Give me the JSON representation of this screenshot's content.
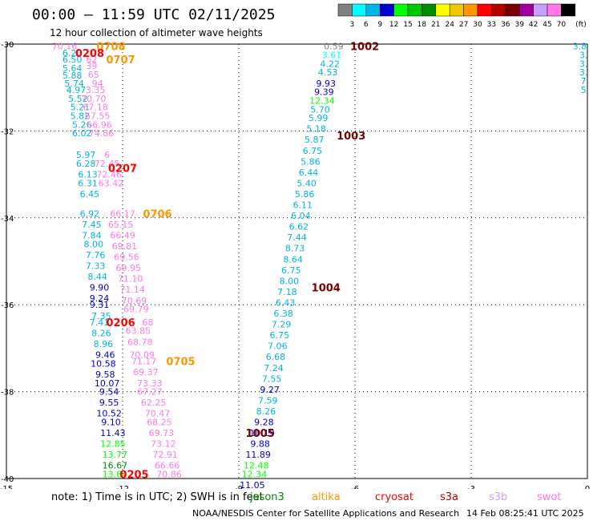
{
  "header": {
    "title": "00:00 – 11:59 UTC 02/11/2025",
    "subtitle": "12 hour collection of altimeter wave heights"
  },
  "legend": {
    "unit": "(ft)",
    "bins": [
      {
        "label": "3",
        "color": "#808080"
      },
      {
        "label": "6",
        "color": "#00ffff"
      },
      {
        "label": "9",
        "color": "#00b4e6"
      },
      {
        "label": "12",
        "color": "#0000d0"
      },
      {
        "label": "15",
        "color": "#00ff00"
      },
      {
        "label": "18",
        "color": "#00c800"
      },
      {
        "label": "21",
        "color": "#008c00"
      },
      {
        "label": "24",
        "color": "#ffff00"
      },
      {
        "label": "27",
        "color": "#f0c800"
      },
      {
        "label": "30",
        "color": "#ff9600"
      },
      {
        "label": "33",
        "color": "#ff0000"
      },
      {
        "label": "36",
        "color": "#b40000"
      },
      {
        "label": "39",
        "color": "#780000"
      },
      {
        "label": "42",
        "color": "#a000a0"
      },
      {
        "label": "45",
        "color": "#c8a0ff"
      },
      {
        "label": "70",
        "color": "#ff78e6"
      },
      {
        "label": "",
        "color": "#000000"
      }
    ]
  },
  "map": {
    "lon_ticks": [
      "-15",
      "-12",
      "-9",
      "-6",
      "-3",
      "0"
    ],
    "lat_ticks": [
      "-30",
      "-32",
      "-34",
      "-36",
      "-38",
      "-40"
    ],
    "track_labels": [
      {
        "text": "0708",
        "lon": -12.3,
        "lat": -30.05,
        "color": "#ff9600"
      },
      {
        "text": "0208",
        "lon": -12.85,
        "lat": -30.2,
        "color": "#ff0000"
      },
      {
        "text": "0707",
        "lon": -12.05,
        "lat": -30.35,
        "color": "#ff9600"
      },
      {
        "text": "0207",
        "lon": -12.0,
        "lat": -32.85,
        "color": "#ff0000"
      },
      {
        "text": "0706",
        "lon": -11.1,
        "lat": -33.9,
        "color": "#ff9600"
      },
      {
        "text": "0206",
        "lon": -12.05,
        "lat": -36.4,
        "color": "#ff0000"
      },
      {
        "text": "0705",
        "lon": -10.5,
        "lat": -37.3,
        "color": "#ff9600"
      },
      {
        "text": "0205",
        "lon": -11.7,
        "lat": -39.9,
        "color": "#ff0000"
      },
      {
        "text": "1002",
        "lon": -5.75,
        "lat": -30.05,
        "color": "#780000"
      },
      {
        "text": "1003",
        "lon": -6.1,
        "lat": -32.1,
        "color": "#780000"
      },
      {
        "text": "1004",
        "lon": -6.75,
        "lat": -35.6,
        "color": "#780000"
      },
      {
        "text": "1005",
        "lon": -8.45,
        "lat": -38.95,
        "color": "#780000"
      }
    ],
    "values": [
      {
        "t": "70.16",
        "lon": -13.5,
        "lat": -30.05,
        "c": "#ff78e6"
      },
      {
        "t": "6.20",
        "lon": -13.3,
        "lat": -30.2,
        "c": "#00b4e6"
      },
      {
        "t": "6.50",
        "lon": -13.3,
        "lat": -30.35,
        "c": "#00b4e6"
      },
      {
        "t": "62",
        "lon": -12.8,
        "lat": -30.35,
        "c": "#ff78e6"
      },
      {
        "t": "39",
        "lon": -12.8,
        "lat": -30.5,
        "c": "#ff78e6"
      },
      {
        "t": "5.64",
        "lon": -13.3,
        "lat": -30.55,
        "c": "#00b4e6"
      },
      {
        "t": "5.88",
        "lon": -13.3,
        "lat": -30.72,
        "c": "#00b4e6"
      },
      {
        "t": "65",
        "lon": -12.75,
        "lat": -30.7,
        "c": "#ff78e6"
      },
      {
        "t": "5.74",
        "lon": -13.25,
        "lat": -30.9,
        "c": "#00b4e6"
      },
      {
        "t": "94",
        "lon": -12.65,
        "lat": -30.9,
        "c": "#ff78e6"
      },
      {
        "t": "4.97",
        "lon": -13.2,
        "lat": -31.05,
        "c": "#00b4e6"
      },
      {
        "t": "3.35",
        "lon": -12.7,
        "lat": -31.05,
        "c": "#ff78e6"
      },
      {
        "t": "5.52",
        "lon": -13.15,
        "lat": -31.25,
        "c": "#00b4e6"
      },
      {
        "t": "70.70",
        "lon": -12.75,
        "lat": -31.25,
        "c": "#ff78e6"
      },
      {
        "t": "5.21",
        "lon": -13.1,
        "lat": -31.45,
        "c": "#00b4e6"
      },
      {
        "t": "67.18",
        "lon": -12.7,
        "lat": -31.45,
        "c": "#ff78e6"
      },
      {
        "t": "5.82",
        "lon": -13.1,
        "lat": -31.65,
        "c": "#00b4e6"
      },
      {
        "t": "67.55",
        "lon": -12.65,
        "lat": -31.65,
        "c": "#ff78e6"
      },
      {
        "t": "5.26",
        "lon": -13.05,
        "lat": -31.85,
        "c": "#00b4e6"
      },
      {
        "t": "66.96",
        "lon": -12.6,
        "lat": -31.85,
        "c": "#ff78e6"
      },
      {
        "t": "6.02",
        "lon": -13.05,
        "lat": -32.05,
        "c": "#00b4e6"
      },
      {
        "t": "74.86",
        "lon": -12.55,
        "lat": -32.05,
        "c": "#ff78e6"
      },
      {
        "t": "5.97",
        "lon": -12.95,
        "lat": -32.55,
        "c": "#00b4e6"
      },
      {
        "t": "6",
        "lon": -12.4,
        "lat": -32.55,
        "c": "#ff78e6"
      },
      {
        "t": "6.28",
        "lon": -12.95,
        "lat": -32.75,
        "c": "#00b4e6"
      },
      {
        "t": "72.45",
        "lon": -12.4,
        "lat": -32.75,
        "c": "#ff78e6"
      },
      {
        "t": "6.13",
        "lon": -12.9,
        "lat": -33.0,
        "c": "#00b4e6"
      },
      {
        "t": "72.46",
        "lon": -12.35,
        "lat": -33.0,
        "c": "#ff78e6"
      },
      {
        "t": "6.31",
        "lon": -12.9,
        "lat": -33.2,
        "c": "#00b4e6"
      },
      {
        "t": "63.42",
        "lon": -12.3,
        "lat": -33.2,
        "c": "#ff78e6"
      },
      {
        "t": "6.45",
        "lon": -12.85,
        "lat": -33.45,
        "c": "#00b4e6"
      },
      {
        "t": "6.92",
        "lon": -12.85,
        "lat": -33.9,
        "c": "#00b4e6"
      },
      {
        "t": "66.17",
        "lon": -12.0,
        "lat": -33.9,
        "c": "#ff78e6"
      },
      {
        "t": "7.45",
        "lon": -12.8,
        "lat": -34.15,
        "c": "#00b4e6"
      },
      {
        "t": "65.15",
        "lon": -12.05,
        "lat": -34.15,
        "c": "#ff78e6"
      },
      {
        "t": "7.84",
        "lon": -12.8,
        "lat": -34.4,
        "c": "#00b4e6"
      },
      {
        "t": "66.49",
        "lon": -12.0,
        "lat": -34.4,
        "c": "#ff78e6"
      },
      {
        "t": "8.00",
        "lon": -12.75,
        "lat": -34.6,
        "c": "#00b4e6"
      },
      {
        "t": "69.81",
        "lon": -11.95,
        "lat": -34.65,
        "c": "#ff78e6"
      },
      {
        "t": "7.76",
        "lon": -12.7,
        "lat": -34.85,
        "c": "#00b4e6"
      },
      {
        "t": "69.56",
        "lon": -11.9,
        "lat": -34.9,
        "c": "#ff78e6"
      },
      {
        "t": "7.33",
        "lon": -12.7,
        "lat": -35.1,
        "c": "#00b4e6"
      },
      {
        "t": "69.95",
        "lon": -11.85,
        "lat": -35.15,
        "c": "#ff78e6"
      },
      {
        "t": "8.44",
        "lon": -12.65,
        "lat": -35.35,
        "c": "#00b4e6"
      },
      {
        "t": "71.10",
        "lon": -11.8,
        "lat": -35.4,
        "c": "#ff78e6"
      },
      {
        "t": "9.90",
        "lon": -12.6,
        "lat": -35.6,
        "c": "#0000d0"
      },
      {
        "t": "71.14",
        "lon": -11.75,
        "lat": -35.65,
        "c": "#ff78e6"
      },
      {
        "t": "9.24",
        "lon": -12.6,
        "lat": -35.85,
        "c": "#0000d0"
      },
      {
        "t": "70.69",
        "lon": -11.7,
        "lat": -35.9,
        "c": "#ff78e6"
      },
      {
        "t": "9.31",
        "lon": -12.6,
        "lat": -36.0,
        "c": "#0000d0"
      },
      {
        "t": "69.79",
        "lon": -11.65,
        "lat": -36.1,
        "c": "#ff78e6"
      },
      {
        "t": "7.35",
        "lon": -12.55,
        "lat": -36.25,
        "c": "#00b4e6"
      },
      {
        "t": "7.41",
        "lon": -12.6,
        "lat": -36.4,
        "c": "#00b4e6"
      },
      {
        "t": "68",
        "lon": -11.35,
        "lat": -36.4,
        "c": "#ff78e6"
      },
      {
        "t": "8.26",
        "lon": -12.55,
        "lat": -36.65,
        "c": "#00b4e6"
      },
      {
        "t": "63.85",
        "lon": -11.6,
        "lat": -36.6,
        "c": "#ff78e6"
      },
      {
        "t": "8.96",
        "lon": -12.5,
        "lat": -36.9,
        "c": "#00b4e6"
      },
      {
        "t": "68.78",
        "lon": -11.55,
        "lat": -36.85,
        "c": "#ff78e6"
      },
      {
        "t": "9.46",
        "lon": -12.45,
        "lat": -37.15,
        "c": "#0000d0"
      },
      {
        "t": "70.09",
        "lon": -11.5,
        "lat": -37.15,
        "c": "#ff78e6"
      },
      {
        "t": "10.58",
        "lon": -12.5,
        "lat": -37.35,
        "c": "#0000d0"
      },
      {
        "t": "71.17",
        "lon": -11.45,
        "lat": -37.3,
        "c": "#ff78e6"
      },
      {
        "t": "9.58",
        "lon": -12.45,
        "lat": -37.6,
        "c": "#0000d0"
      },
      {
        "t": "69.37",
        "lon": -11.4,
        "lat": -37.55,
        "c": "#ff78e6"
      },
      {
        "t": "10.07",
        "lon": -12.4,
        "lat": -37.8,
        "c": "#0000d0"
      },
      {
        "t": "73.33",
        "lon": -11.3,
        "lat": -37.8,
        "c": "#ff78e6"
      },
      {
        "t": "9.54",
        "lon": -12.35,
        "lat": -38.0,
        "c": "#0000d0"
      },
      {
        "t": "67.27",
        "lon": -11.3,
        "lat": -38.0,
        "c": "#ff78e6"
      },
      {
        "t": "9.55",
        "lon": -12.35,
        "lat": -38.25,
        "c": "#0000d0"
      },
      {
        "t": "62.25",
        "lon": -11.2,
        "lat": -38.25,
        "c": "#ff78e6"
      },
      {
        "t": "10.52",
        "lon": -12.35,
        "lat": -38.5,
        "c": "#0000d0"
      },
      {
        "t": "70.47",
        "lon": -11.1,
        "lat": -38.5,
        "c": "#ff78e6"
      },
      {
        "t": "9.10",
        "lon": -12.3,
        "lat": -38.7,
        "c": "#0000d0"
      },
      {
        "t": "68.25",
        "lon": -11.05,
        "lat": -38.7,
        "c": "#ff78e6"
      },
      {
        "t": "11.43",
        "lon": -12.25,
        "lat": -38.95,
        "c": "#0000d0"
      },
      {
        "t": "69.73",
        "lon": -11.0,
        "lat": -38.95,
        "c": "#ff78e6"
      },
      {
        "t": "12.85",
        "lon": -12.25,
        "lat": -39.2,
        "c": "#00ff00"
      },
      {
        "t": "73.12",
        "lon": -10.95,
        "lat": -39.2,
        "c": "#ff78e6"
      },
      {
        "t": "13.77",
        "lon": -12.2,
        "lat": -39.45,
        "c": "#00ff00"
      },
      {
        "t": "72.91",
        "lon": -10.9,
        "lat": -39.45,
        "c": "#ff78e6"
      },
      {
        "t": "16.67",
        "lon": -12.2,
        "lat": -39.7,
        "c": "#008c00"
      },
      {
        "t": "66.66",
        "lon": -10.85,
        "lat": -39.7,
        "c": "#ff78e6"
      },
      {
        "t": "13.84",
        "lon": -12.2,
        "lat": -39.9,
        "c": "#00ff00"
      },
      {
        "t": "70.86",
        "lon": -10.8,
        "lat": -39.9,
        "c": "#ff78e6"
      },
      {
        "t": "0.59",
        "lon": -6.55,
        "lat": -30.05,
        "c": "#808080"
      },
      {
        "t": "3.61",
        "lon": -6.6,
        "lat": -30.25,
        "c": "#00ffff"
      },
      {
        "t": "4.22",
        "lon": -6.65,
        "lat": -30.45,
        "c": "#00b4e6"
      },
      {
        "t": "4.53",
        "lon": -6.7,
        "lat": -30.65,
        "c": "#00b4e6"
      },
      {
        "t": "9.93",
        "lon": -6.75,
        "lat": -30.9,
        "c": "#0000d0"
      },
      {
        "t": "9.39",
        "lon": -6.8,
        "lat": -31.1,
        "c": "#0000d0"
      },
      {
        "t": "12.34",
        "lon": -6.85,
        "lat": -31.3,
        "c": "#00ff00"
      },
      {
        "t": "5.70",
        "lon": -6.9,
        "lat": -31.5,
        "c": "#00b4e6"
      },
      {
        "t": "5.99",
        "lon": -6.95,
        "lat": -31.7,
        "c": "#00b4e6"
      },
      {
        "t": "5.18",
        "lon": -7.0,
        "lat": -31.95,
        "c": "#00b4e6"
      },
      {
        "t": "5.87",
        "lon": -7.05,
        "lat": -32.2,
        "c": "#00b4e6"
      },
      {
        "t": "6.75",
        "lon": -7.1,
        "lat": -32.45,
        "c": "#00b4e6"
      },
      {
        "t": "5.86",
        "lon": -7.15,
        "lat": -32.7,
        "c": "#00b4e6"
      },
      {
        "t": "6.44",
        "lon": -7.2,
        "lat": -32.95,
        "c": "#00b4e6"
      },
      {
        "t": "5.40",
        "lon": -7.25,
        "lat": -33.2,
        "c": "#00b4e6"
      },
      {
        "t": "5.86",
        "lon": -7.3,
        "lat": -33.45,
        "c": "#00b4e6"
      },
      {
        "t": "6.11",
        "lon": -7.35,
        "lat": -33.7,
        "c": "#00b4e6"
      },
      {
        "t": "6.04",
        "lon": -7.4,
        "lat": -33.95,
        "c": "#00b4e6"
      },
      {
        "t": "6.62",
        "lon": -7.45,
        "lat": -34.2,
        "c": "#00b4e6"
      },
      {
        "t": "7.44",
        "lon": -7.5,
        "lat": -34.45,
        "c": "#00b4e6"
      },
      {
        "t": "8.73",
        "lon": -7.55,
        "lat": -34.7,
        "c": "#00b4e6"
      },
      {
        "t": "8.64",
        "lon": -7.6,
        "lat": -34.95,
        "c": "#00b4e6"
      },
      {
        "t": "6.75",
        "lon": -7.65,
        "lat": -35.2,
        "c": "#00b4e6"
      },
      {
        "t": "8.00",
        "lon": -7.7,
        "lat": -35.45,
        "c": "#00b4e6"
      },
      {
        "t": "7.18",
        "lon": -7.75,
        "lat": -35.7,
        "c": "#00b4e6"
      },
      {
        "t": "6.43",
        "lon": -7.8,
        "lat": -35.95,
        "c": "#00b4e6"
      },
      {
        "t": "6.38",
        "lon": -7.85,
        "lat": -36.2,
        "c": "#00b4e6"
      },
      {
        "t": "7.29",
        "lon": -7.9,
        "lat": -36.45,
        "c": "#00b4e6"
      },
      {
        "t": "6.75",
        "lon": -7.95,
        "lat": -36.7,
        "c": "#00b4e6"
      },
      {
        "t": "7.06",
        "lon": -8.0,
        "lat": -36.95,
        "c": "#00b4e6"
      },
      {
        "t": "6.68",
        "lon": -8.05,
        "lat": -37.2,
        "c": "#00b4e6"
      },
      {
        "t": "7.24",
        "lon": -8.1,
        "lat": -37.45,
        "c": "#00b4e6"
      },
      {
        "t": "7.55",
        "lon": -8.15,
        "lat": -37.7,
        "c": "#00b4e6"
      },
      {
        "t": "9.27",
        "lon": -8.2,
        "lat": -37.95,
        "c": "#0000d0"
      },
      {
        "t": "7.59",
        "lon": -8.25,
        "lat": -38.2,
        "c": "#00b4e6"
      },
      {
        "t": "8.26",
        "lon": -8.3,
        "lat": -38.45,
        "c": "#00b4e6"
      },
      {
        "t": "9.28",
        "lon": -8.35,
        "lat": -38.7,
        "c": "#0000d0"
      },
      {
        "t": "10.19",
        "lon": -8.4,
        "lat": -38.95,
        "c": "#0000d0"
      },
      {
        "t": "9.88",
        "lon": -8.45,
        "lat": -39.2,
        "c": "#0000d0"
      },
      {
        "t": "11.89",
        "lon": -8.5,
        "lat": -39.45,
        "c": "#0000d0"
      },
      {
        "t": "12.48",
        "lon": -8.55,
        "lat": -39.7,
        "c": "#00ff00"
      },
      {
        "t": "12.34",
        "lon": -8.6,
        "lat": -39.9,
        "c": "#00ff00"
      },
      {
        "t": "11.05",
        "lon": -8.65,
        "lat": -40.15,
        "c": "#0000d0"
      },
      {
        "t": "3.8",
        "lon": -0.2,
        "lat": -30.05,
        "c": "#00b4e6"
      },
      {
        "t": "3.",
        "lon": -0.1,
        "lat": -30.25,
        "c": "#00b4e6"
      },
      {
        "t": "3.",
        "lon": -0.1,
        "lat": -30.45,
        "c": "#00b4e6"
      },
      {
        "t": "3.",
        "lon": -0.1,
        "lat": -30.65,
        "c": "#00b4e6"
      },
      {
        "t": "7",
        "lon": -0.1,
        "lat": -30.85,
        "c": "#00b4e6"
      },
      {
        "t": "5",
        "lon": -0.1,
        "lat": -31.05,
        "c": "#00b4e6"
      }
    ]
  },
  "footer": {
    "note": "note:  1) Time is in UTC; 2) SWH is in feet",
    "satellites": [
      {
        "name": "jason3",
        "color": "#008c00"
      },
      {
        "name": "altika",
        "color": "#ff9600"
      },
      {
        "name": "cryosat",
        "color": "#ff0000"
      },
      {
        "name": "s3a",
        "color": "#b40000"
      },
      {
        "name": "s3b",
        "color": "#c8a0ff"
      },
      {
        "name": "swot",
        "color": "#ff78e6"
      }
    ],
    "credit": "NOAA/NESDIS Center for Satellite Applications and Research",
    "timestamp": "14 Feb 08:25:41 UTC 2025"
  }
}
